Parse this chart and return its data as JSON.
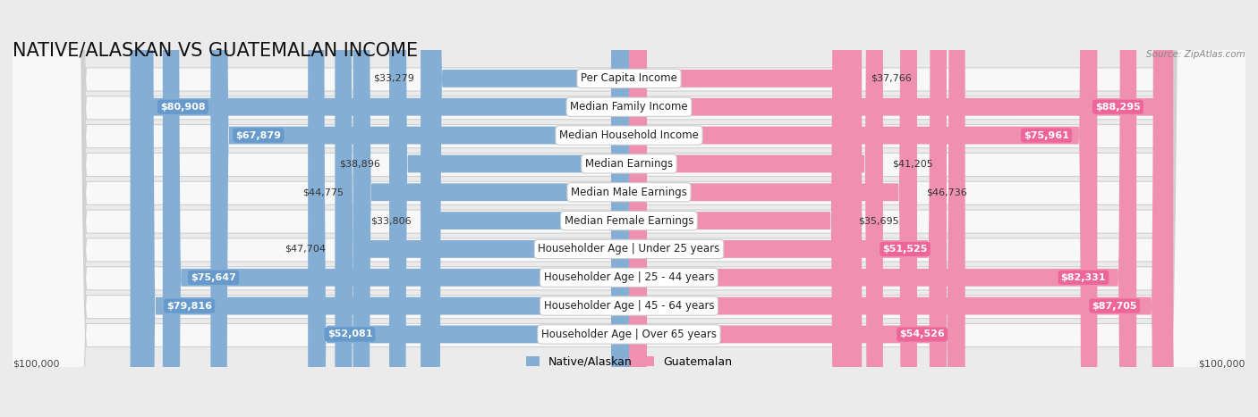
{
  "title": "NATIVE/ALASKAN VS GUATEMALAN INCOME",
  "source": "Source: ZipAtlas.com",
  "categories": [
    "Per Capita Income",
    "Median Family Income",
    "Median Household Income",
    "Median Earnings",
    "Median Male Earnings",
    "Median Female Earnings",
    "Householder Age | Under 25 years",
    "Householder Age | 25 - 44 years",
    "Householder Age | 45 - 64 years",
    "Householder Age | Over 65 years"
  ],
  "native_values": [
    33279,
    80908,
    67879,
    38896,
    44775,
    33806,
    47704,
    75647,
    79816,
    52081
  ],
  "guatemalan_values": [
    37766,
    88295,
    75961,
    41205,
    46736,
    35695,
    51525,
    82331,
    87705,
    54526
  ],
  "native_color": "#85aed4",
  "guatemalan_color": "#f090b0",
  "native_label_bg": "#6699cc",
  "guatemalan_label_bg": "#ee6699",
  "max_value": 100000,
  "xlabel_left": "$100,000",
  "xlabel_right": "$100,000",
  "legend_native": "Native/Alaskan",
  "legend_guatemalan": "Guatemalan",
  "background_color": "#ebebeb",
  "row_background": "#f8f8f8",
  "title_fontsize": 15,
  "label_fontsize": 8.5,
  "value_fontsize": 8,
  "inside_threshold": 50000
}
